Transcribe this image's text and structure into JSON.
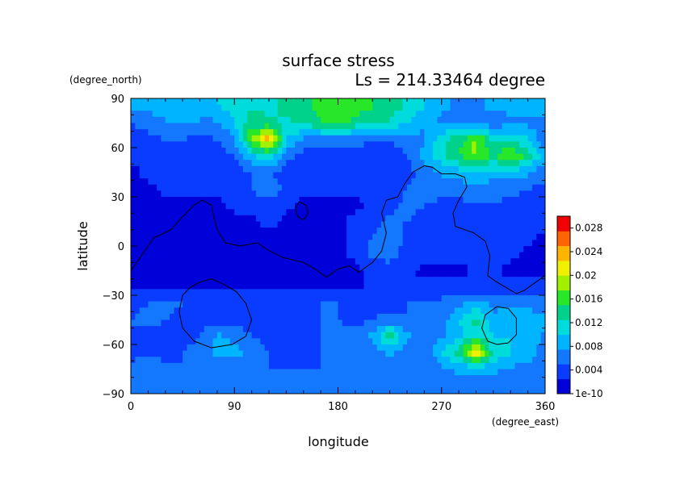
{
  "chart_data": {
    "type": "heatmap",
    "title": "surface stress",
    "subtitle": "Ls = 214.33464 degree",
    "xlabel": "longitude",
    "ylabel": "latitude",
    "x_unit": "(degree_east)",
    "y_unit": "(degree_north)",
    "xlim": [
      0,
      360
    ],
    "ylim": [
      -90,
      90
    ],
    "x_ticks": [
      "0",
      "90",
      "180",
      "270",
      "360"
    ],
    "y_ticks": [
      "90",
      "60",
      "30",
      "0",
      "−30",
      "−60",
      "−90"
    ],
    "colorbar": {
      "min": 0,
      "max": 0.03,
      "ticks": [
        "1e-10",
        "0.004",
        "0.008",
        "0.012",
        "0.016",
        "0.02",
        "0.024",
        "0.028"
      ],
      "tick_values": [
        0,
        0.004,
        0.008,
        0.012,
        0.016,
        0.02,
        0.024,
        0.028
      ],
      "colors": [
        "#0000d8",
        "#0a3cff",
        "#1478ff",
        "#00b4ff",
        "#00dcdc",
        "#00d28c",
        "#28e628",
        "#a0f000",
        "#f0f000",
        "#ffb400",
        "#ff6400",
        "#f00000"
      ]
    },
    "grid_lons": [
      0,
      15,
      30,
      45,
      60,
      75,
      90,
      105,
      120,
      135,
      150,
      165,
      180,
      195,
      210,
      225,
      240,
      255,
      270,
      285,
      300,
      315,
      330,
      345,
      360
    ],
    "grid_lats": [
      85,
      75,
      65,
      55,
      45,
      35,
      25,
      15,
      5,
      -5,
      -15,
      -25,
      -35,
      -45,
      -55,
      -65,
      -75,
      -85
    ],
    "values": [
      [
        0.008,
        0.008,
        0.009,
        0.01,
        0.009,
        0.01,
        0.011,
        0.012,
        0.012,
        0.013,
        0.014,
        0.016,
        0.017,
        0.016,
        0.015,
        0.014,
        0.012,
        0.01,
        0.008,
        0.007,
        0.007,
        0.008,
        0.008,
        0.009,
        0.009
      ],
      [
        0.005,
        0.006,
        0.007,
        0.008,
        0.007,
        0.007,
        0.01,
        0.014,
        0.013,
        0.012,
        0.013,
        0.015,
        0.016,
        0.014,
        0.013,
        0.012,
        0.01,
        0.008,
        0.007,
        0.006,
        0.006,
        0.006,
        0.007,
        0.007,
        0.007
      ],
      [
        0.003,
        0.004,
        0.005,
        0.005,
        0.004,
        0.005,
        0.007,
        0.018,
        0.024,
        0.01,
        0.007,
        0.006,
        0.007,
        0.006,
        0.005,
        0.005,
        0.006,
        0.007,
        0.012,
        0.014,
        0.018,
        0.012,
        0.012,
        0.01,
        0.006
      ],
      [
        0.003,
        0.003,
        0.004,
        0.004,
        0.003,
        0.004,
        0.005,
        0.01,
        0.012,
        0.006,
        0.004,
        0.004,
        0.004,
        0.004,
        0.004,
        0.004,
        0.005,
        0.009,
        0.012,
        0.015,
        0.018,
        0.014,
        0.018,
        0.014,
        0.008
      ],
      [
        0.002,
        0.003,
        0.003,
        0.003,
        0.003,
        0.003,
        0.004,
        0.005,
        0.005,
        0.004,
        0.003,
        0.003,
        0.003,
        0.003,
        0.003,
        0.003,
        0.004,
        0.006,
        0.008,
        0.009,
        0.01,
        0.009,
        0.009,
        0.008,
        0.006
      ],
      [
        0.002,
        0.002,
        0.003,
        0.003,
        0.003,
        0.003,
        0.004,
        0.005,
        0.007,
        0.004,
        0.003,
        0.003,
        0.003,
        0.003,
        0.003,
        0.003,
        0.005,
        0.007,
        0.006,
        0.006,
        0.007,
        0.006,
        0.006,
        0.005,
        0.004
      ],
      [
        0.002,
        0.002,
        0.002,
        0.002,
        0.002,
        0.002,
        0.003,
        0.003,
        0.004,
        0.003,
        0.002,
        0.002,
        0.002,
        0.002,
        0.003,
        0.004,
        0.006,
        0.005,
        0.004,
        0.004,
        0.005,
        0.005,
        0.004,
        0.004,
        0.003
      ],
      [
        0.001,
        0.002,
        0.002,
        0.002,
        0.002,
        0.002,
        0.002,
        0.002,
        0.003,
        0.002,
        0.002,
        0.002,
        0.002,
        0.003,
        0.004,
        0.006,
        0.005,
        0.004,
        0.004,
        0.003,
        0.004,
        0.005,
        0.005,
        0.003,
        0.003
      ],
      [
        0.001,
        0.001,
        0.001,
        0.001,
        0.001,
        0.001,
        0.001,
        0.002,
        0.002,
        0.002,
        0.002,
        0.001,
        0.002,
        0.003,
        0.005,
        0.007,
        0.004,
        0.004,
        0.003,
        0.003,
        0.003,
        0.004,
        0.004,
        0.003,
        0.002
      ],
      [
        0.001,
        0.001,
        0.001,
        0.001,
        0.001,
        0.001,
        0.001,
        0.001,
        0.001,
        0.001,
        0.001,
        0.001,
        0.002,
        0.003,
        0.006,
        0.006,
        0.004,
        0.003,
        0.003,
        0.003,
        0.003,
        0.003,
        0.003,
        0.002,
        0.002
      ],
      [
        0.001,
        0.001,
        0.001,
        0.001,
        0.001,
        0.001,
        0.001,
        0.001,
        0.001,
        0.001,
        0.001,
        0.001,
        0.001,
        0.002,
        0.003,
        0.004,
        0.003,
        0.002,
        0.002,
        0.002,
        0.003,
        0.003,
        0.002,
        0.002,
        0.002
      ],
      [
        0.002,
        0.002,
        0.002,
        0.002,
        0.002,
        0.002,
        0.002,
        0.002,
        0.002,
        0.002,
        0.002,
        0.002,
        0.002,
        0.002,
        0.003,
        0.003,
        0.003,
        0.003,
        0.003,
        0.003,
        0.003,
        0.003,
        0.003,
        0.003,
        0.003
      ],
      [
        0.004,
        0.005,
        0.006,
        0.005,
        0.004,
        0.004,
        0.004,
        0.004,
        0.004,
        0.004,
        0.004,
        0.005,
        0.005,
        0.004,
        0.004,
        0.004,
        0.005,
        0.005,
        0.006,
        0.007,
        0.008,
        0.007,
        0.007,
        0.006,
        0.006
      ],
      [
        0.005,
        0.006,
        0.005,
        0.004,
        0.004,
        0.004,
        0.004,
        0.004,
        0.004,
        0.004,
        0.005,
        0.005,
        0.005,
        0.004,
        0.005,
        0.006,
        0.005,
        0.005,
        0.006,
        0.01,
        0.014,
        0.008,
        0.009,
        0.01,
        0.008
      ],
      [
        0.005,
        0.004,
        0.004,
        0.004,
        0.005,
        0.008,
        0.007,
        0.005,
        0.004,
        0.004,
        0.004,
        0.005,
        0.006,
        0.006,
        0.008,
        0.014,
        0.008,
        0.006,
        0.007,
        0.009,
        0.012,
        0.01,
        0.01,
        0.009,
        0.007
      ],
      [
        0.004,
        0.004,
        0.004,
        0.005,
        0.006,
        0.008,
        0.008,
        0.007,
        0.005,
        0.004,
        0.004,
        0.005,
        0.007,
        0.005,
        0.006,
        0.008,
        0.006,
        0.005,
        0.01,
        0.014,
        0.024,
        0.012,
        0.01,
        0.009,
        0.006
      ],
      [
        0.006,
        0.007,
        0.006,
        0.005,
        0.006,
        0.006,
        0.006,
        0.005,
        0.005,
        0.005,
        0.005,
        0.005,
        0.005,
        0.006,
        0.006,
        0.006,
        0.006,
        0.006,
        0.007,
        0.008,
        0.008,
        0.008,
        0.007,
        0.007,
        0.007
      ],
      [
        0.006,
        0.006,
        0.006,
        0.006,
        0.006,
        0.006,
        0.006,
        0.006,
        0.006,
        0.006,
        0.006,
        0.006,
        0.006,
        0.006,
        0.006,
        0.006,
        0.006,
        0.006,
        0.006,
        0.006,
        0.006,
        0.006,
        0.006,
        0.006,
        0.006
      ]
    ],
    "contours": [
      {
        "name": "topo-north",
        "points": [
          [
            0,
            -15
          ],
          [
            10,
            -5
          ],
          [
            20,
            5
          ],
          [
            35,
            10
          ],
          [
            45,
            18
          ],
          [
            55,
            25
          ],
          [
            62,
            28
          ],
          [
            70,
            25
          ],
          [
            72,
            18
          ],
          [
            75,
            10
          ],
          [
            82,
            2
          ],
          [
            95,
            0
          ],
          [
            110,
            2
          ],
          [
            118,
            -2
          ],
          [
            132,
            -7
          ],
          [
            150,
            -10
          ],
          [
            160,
            -14
          ],
          [
            170,
            -19
          ],
          [
            180,
            -14
          ],
          [
            190,
            -12
          ],
          [
            198,
            -16
          ],
          [
            210,
            -10
          ],
          [
            218,
            -3
          ],
          [
            222,
            8
          ],
          [
            218,
            20
          ],
          [
            222,
            28
          ],
          [
            232,
            30
          ],
          [
            238,
            38
          ],
          [
            245,
            45
          ],
          [
            255,
            49
          ],
          [
            262,
            48
          ],
          [
            270,
            44
          ],
          [
            282,
            44
          ],
          [
            290,
            42
          ],
          [
            292,
            36
          ],
          [
            285,
            28
          ],
          [
            280,
            20
          ],
          [
            282,
            12
          ],
          [
            290,
            10
          ],
          [
            298,
            8
          ],
          [
            308,
            3
          ],
          [
            312,
            -6
          ],
          [
            310,
            -18
          ],
          [
            318,
            -22
          ],
          [
            328,
            -26
          ],
          [
            335,
            -29
          ],
          [
            342,
            -27
          ],
          [
            352,
            -22
          ],
          [
            360,
            -18
          ]
        ]
      },
      {
        "name": "hellas-basin",
        "points": [
          [
            60,
            -22
          ],
          [
            70,
            -20
          ],
          [
            80,
            -23
          ],
          [
            92,
            -28
          ],
          [
            100,
            -35
          ],
          [
            105,
            -45
          ],
          [
            100,
            -55
          ],
          [
            88,
            -60
          ],
          [
            70,
            -62
          ],
          [
            55,
            -58
          ],
          [
            45,
            -50
          ],
          [
            42,
            -40
          ],
          [
            45,
            -30
          ],
          [
            52,
            -25
          ],
          [
            60,
            -22
          ]
        ]
      },
      {
        "name": "argyre-basin",
        "points": [
          [
            318,
            -37
          ],
          [
            328,
            -38
          ],
          [
            335,
            -44
          ],
          [
            335,
            -54
          ],
          [
            328,
            -59
          ],
          [
            318,
            -60
          ],
          [
            310,
            -58
          ],
          [
            305,
            -50
          ],
          [
            308,
            -42
          ],
          [
            318,
            -37
          ]
        ]
      },
      {
        "name": "small-mound",
        "points": [
          [
            146,
            27
          ],
          [
            152,
            25
          ],
          [
            154,
            20
          ],
          [
            150,
            16
          ],
          [
            145,
            18
          ],
          [
            143,
            23
          ],
          [
            146,
            27
          ]
        ]
      }
    ]
  }
}
